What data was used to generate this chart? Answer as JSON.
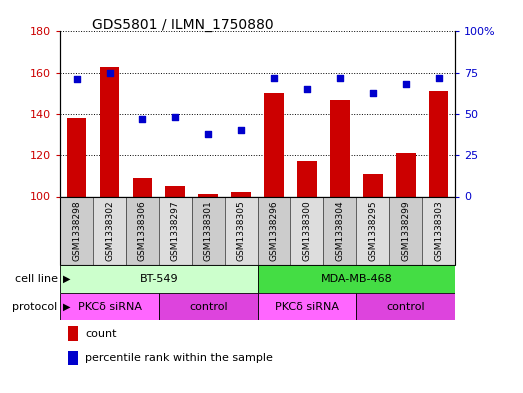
{
  "title": "GDS5801 / ILMN_1750880",
  "samples": [
    "GSM1338298",
    "GSM1338302",
    "GSM1338306",
    "GSM1338297",
    "GSM1338301",
    "GSM1338305",
    "GSM1338296",
    "GSM1338300",
    "GSM1338304",
    "GSM1338295",
    "GSM1338299",
    "GSM1338303"
  ],
  "counts": [
    138,
    163,
    109,
    105,
    101,
    102,
    150,
    117,
    147,
    111,
    121,
    151
  ],
  "percentiles": [
    71,
    75,
    47,
    48,
    38,
    40,
    72,
    65,
    72,
    63,
    68,
    72
  ],
  "cell_lines": [
    {
      "label": "BT-549",
      "start": 0,
      "end": 6,
      "color": "#ccffcc"
    },
    {
      "label": "MDA-MB-468",
      "start": 6,
      "end": 12,
      "color": "#44dd44"
    }
  ],
  "protocols": [
    {
      "label": "PKCδ siRNA",
      "start": 0,
      "end": 3,
      "color": "#ff66ff"
    },
    {
      "label": "control",
      "start": 3,
      "end": 6,
      "color": "#dd44dd"
    },
    {
      "label": "PKCδ siRNA",
      "start": 6,
      "end": 9,
      "color": "#ff66ff"
    },
    {
      "label": "control",
      "start": 9,
      "end": 12,
      "color": "#dd44dd"
    }
  ],
  "ylim_left": [
    100,
    180
  ],
  "ylim_right": [
    0,
    100
  ],
  "yticks_left": [
    100,
    120,
    140,
    160,
    180
  ],
  "yticks_right": [
    0,
    25,
    50,
    75,
    100
  ],
  "ytick_labels_right": [
    "0",
    "25",
    "50",
    "75",
    "100%"
  ],
  "bar_color": "#cc0000",
  "dot_color": "#0000cc",
  "background_color": "#ffffff",
  "axis_color_left": "#cc0000",
  "axis_color_right": "#0000cc",
  "col_bg_odd": "#cccccc",
  "col_bg_even": "#dddddd",
  "cell_line_label": "cell line",
  "protocol_label": "protocol",
  "legend_count": "count",
  "legend_pct": "percentile rank within the sample"
}
